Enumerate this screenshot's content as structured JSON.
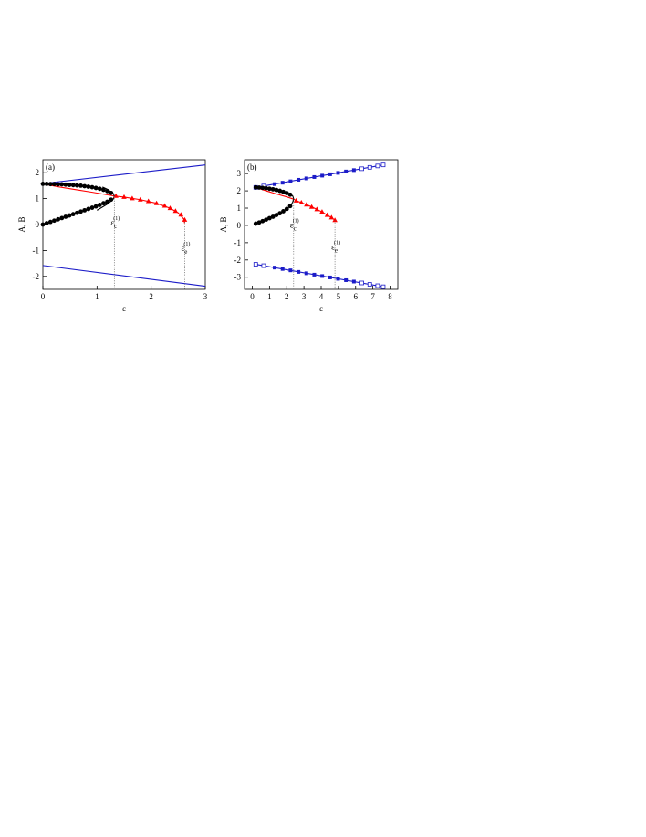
{
  "chart_data": [
    {
      "type": "line",
      "label": "(a)",
      "xlabel": "ε",
      "ylabel": "A, B",
      "xlim": [
        0,
        3
      ],
      "ylim": [
        -2.5,
        2.5
      ],
      "xticks": [
        0,
        1,
        2,
        3
      ],
      "yticks": [
        -2,
        -1,
        0,
        1,
        2
      ],
      "series": [
        {
          "color": "#1c1cc8",
          "marker": "none",
          "x": [
            0,
            3
          ],
          "values": [
            1.58,
            2.3
          ]
        },
        {
          "color": "#1c1cc8",
          "marker": "none",
          "x": [
            0,
            3
          ],
          "values": [
            -1.58,
            -2.38
          ]
        },
        {
          "color": "#ff0000",
          "marker": "none",
          "x": [
            0,
            0.3,
            0.6,
            0.9,
            1.1,
            1.32,
            1.5,
            1.8,
            2.1,
            2.35,
            2.5,
            2.6,
            2.62
          ],
          "values": [
            1.57,
            1.45,
            1.35,
            1.25,
            1.18,
            1.1,
            1.06,
            0.96,
            0.82,
            0.63,
            0.45,
            0.22,
            0.05
          ]
        },
        {
          "color": "#000000",
          "marker": "none",
          "x": [
            1.0,
            1.2,
            1.3,
            1.32,
            1.3,
            1.2,
            1.1
          ],
          "values": [
            0.55,
            0.8,
            0.98,
            1.1,
            1.2,
            1.35,
            1.45
          ]
        },
        {
          "color": "#000000",
          "marker": "circle",
          "x": [
            0,
            0.07,
            0.14,
            0.21,
            0.28,
            0.35,
            0.42,
            0.49,
            0.56,
            0.63,
            0.7,
            0.77,
            0.84,
            0.91,
            0.98,
            1.05,
            1.12,
            1.19,
            1.26
          ],
          "values": [
            1.57,
            1.57,
            1.56,
            1.56,
            1.55,
            1.55,
            1.54,
            1.53,
            1.52,
            1.51,
            1.5,
            1.48,
            1.46,
            1.44,
            1.41,
            1.38,
            1.34,
            1.29,
            1.22
          ]
        },
        {
          "color": "#000000",
          "marker": "circle",
          "x": [
            0,
            0.07,
            0.14,
            0.21,
            0.28,
            0.35,
            0.42,
            0.49,
            0.56,
            0.63,
            0.7,
            0.77,
            0.84,
            0.91,
            0.98,
            1.05,
            1.12,
            1.19,
            1.26
          ],
          "values": [
            0,
            0.05,
            0.1,
            0.15,
            0.2,
            0.25,
            0.3,
            0.35,
            0.4,
            0.45,
            0.5,
            0.55,
            0.6,
            0.65,
            0.7,
            0.76,
            0.82,
            0.88,
            0.96
          ]
        },
        {
          "color": "#ff0000",
          "marker": "triangle",
          "x": [
            1.35,
            1.5,
            1.65,
            1.8,
            1.95,
            2.1,
            2.25,
            2.35,
            2.45,
            2.55,
            2.62
          ],
          "values": [
            1.1,
            1.06,
            1.01,
            0.96,
            0.9,
            0.82,
            0.72,
            0.63,
            0.52,
            0.38,
            0.18
          ]
        }
      ],
      "vlines": [
        {
          "x": 1.32,
          "y": 1.1
        },
        {
          "x": 2.62,
          "y": 0.1
        }
      ],
      "annotations": [
        {
          "text": "ε",
          "sub": "c",
          "sup": "(1)"
        },
        {
          "text": "ε",
          "sub": "e",
          "sup": "(1)"
        }
      ]
    },
    {
      "type": "line",
      "label": "(b)",
      "xlabel": "ε",
      "ylabel": "A, B",
      "xlim": [
        -0.45,
        8.45
      ],
      "ylim": [
        -3.7,
        3.8
      ],
      "xticks": [
        0,
        1,
        2,
        3,
        4,
        5,
        6,
        7,
        8
      ],
      "yticks": [
        -3,
        -2,
        -1,
        0,
        1,
        2,
        3
      ],
      "series": [
        {
          "color": "#1c1cc8",
          "marker": "none",
          "x": [
            0.2,
            7.6
          ],
          "values": [
            2.2,
            3.5
          ]
        },
        {
          "color": "#1c1cc8",
          "marker": "none",
          "x": [
            0.2,
            7.6
          ],
          "values": [
            -2.25,
            -3.55
          ]
        },
        {
          "color": "#1c1cc8",
          "marker": "square",
          "x": [
            1.3,
            1.76,
            2.22,
            2.68,
            3.14,
            3.6,
            4.06,
            4.52,
            4.98,
            5.44,
            5.9
          ],
          "values": [
            2.39,
            2.47,
            2.55,
            2.64,
            2.72,
            2.8,
            2.88,
            2.96,
            3.04,
            3.12,
            3.2
          ]
        },
        {
          "color": "#1c1cc8",
          "marker": "square-open",
          "x": [
            0.2,
            0.66,
            6.36,
            6.82,
            7.28,
            7.6
          ],
          "values": [
            2.2,
            2.28,
            3.28,
            3.36,
            3.44,
            3.5
          ]
        },
        {
          "color": "#1c1cc8",
          "marker": "square",
          "x": [
            1.3,
            1.76,
            2.22,
            2.68,
            3.14,
            3.6,
            4.06,
            4.52,
            4.98,
            5.44,
            5.9
          ],
          "values": [
            -2.44,
            -2.52,
            -2.6,
            -2.69,
            -2.77,
            -2.85,
            -2.93,
            -3.01,
            -3.09,
            -3.17,
            -3.25
          ]
        },
        {
          "color": "#1c1cc8",
          "marker": "square-open",
          "x": [
            0.2,
            0.66,
            6.36,
            6.82,
            7.28,
            7.6
          ],
          "values": [
            -2.25,
            -2.33,
            -3.33,
            -3.41,
            -3.49,
            -3.55
          ]
        },
        {
          "color": "#ff0000",
          "marker": "none",
          "x": [
            0.2,
            0.8,
            1.4,
            2.0,
            2.4,
            2.55,
            2.85,
            3.15,
            3.45,
            3.75,
            4.05,
            4.35,
            4.6,
            4.8
          ],
          "values": [
            2.2,
            2.0,
            1.82,
            1.65,
            1.52,
            1.43,
            1.32,
            1.2,
            1.07,
            0.93,
            0.78,
            0.6,
            0.45,
            0.3
          ]
        },
        {
          "color": "#000000",
          "marker": "none",
          "x": [
            2.0,
            2.2,
            2.35,
            2.4,
            2.35,
            2.2,
            2.0
          ],
          "values": [
            0.95,
            1.12,
            1.35,
            1.55,
            1.7,
            1.78,
            1.87
          ]
        },
        {
          "color": "#000000",
          "marker": "circle",
          "x": [
            0.2,
            0.4,
            0.6,
            0.8,
            1.0,
            1.2,
            1.4,
            1.6,
            1.8,
            2.0,
            2.2
          ],
          "values": [
            2.2,
            2.19,
            2.17,
            2.15,
            2.12,
            2.09,
            2.05,
            2.0,
            1.94,
            1.87,
            1.78
          ]
        },
        {
          "color": "#000000",
          "marker": "circle",
          "x": [
            0.2,
            0.4,
            0.6,
            0.8,
            1.0,
            1.2,
            1.4,
            1.6,
            1.8,
            2.0,
            2.2
          ],
          "values": [
            0.1,
            0.17,
            0.25,
            0.33,
            0.42,
            0.5,
            0.6,
            0.7,
            0.82,
            0.95,
            1.12
          ]
        },
        {
          "color": "#ff0000",
          "marker": "triangle",
          "x": [
            2.55,
            2.85,
            3.15,
            3.45,
            3.75,
            4.05,
            4.35,
            4.6,
            4.8
          ],
          "values": [
            1.43,
            1.32,
            1.2,
            1.07,
            0.93,
            0.78,
            0.6,
            0.45,
            0.3
          ]
        }
      ],
      "vlines": [
        {
          "x": 2.4,
          "y": 1.55
        },
        {
          "x": 4.8,
          "y": 0.3
        }
      ],
      "annotations": [
        {
          "text": "ε",
          "sub": "c",
          "sup": "(1)"
        },
        {
          "text": "ε",
          "sub": "e",
          "sup": "(1)"
        }
      ]
    }
  ]
}
